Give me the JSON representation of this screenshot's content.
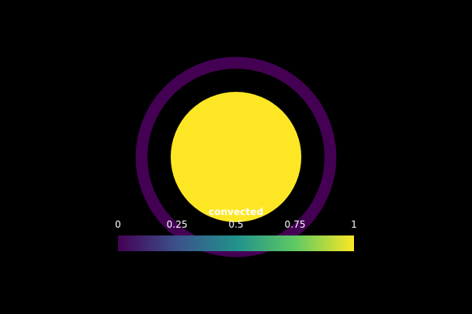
{
  "render_view": {
    "background": "#000000",
    "field_name": "convected",
    "shapes": {
      "outer_ring": {
        "value": 0.0,
        "color": "#440154"
      },
      "inner_disk": {
        "value": 1.0,
        "color": "#fde725"
      }
    }
  },
  "colorbar": {
    "title": "convected",
    "range": [
      0,
      1
    ],
    "colormap": "viridis",
    "colors": [
      "#440154",
      "#3b528b",
      "#21918c",
      "#5ec962",
      "#fde725"
    ],
    "ticks": [
      {
        "value": 0,
        "label": "0"
      },
      {
        "value": 0.25,
        "label": "0.25"
      },
      {
        "value": 0.5,
        "label": "0.5"
      },
      {
        "value": 0.75,
        "label": "0.75"
      },
      {
        "value": 1,
        "label": "1"
      }
    ]
  }
}
